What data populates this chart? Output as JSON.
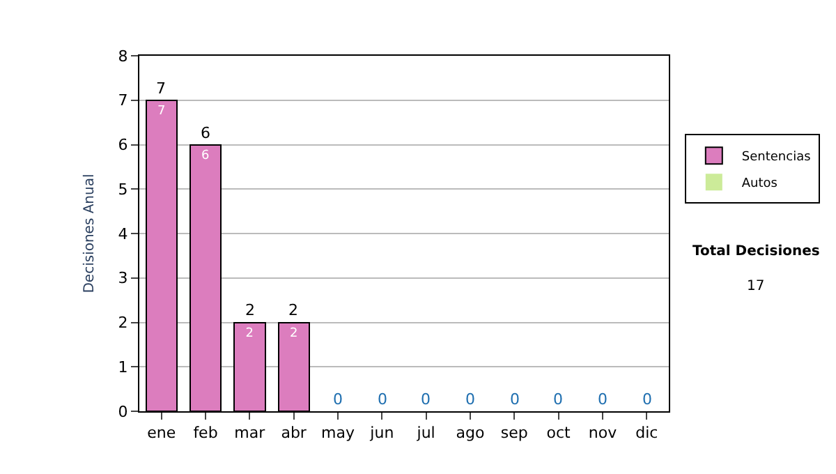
{
  "chart_data": {
    "type": "bar",
    "ylabel": "Decisiones Anual",
    "categories": [
      "ene",
      "feb",
      "mar",
      "abr",
      "may",
      "jun",
      "jul",
      "ago",
      "sep",
      "oct",
      "nov",
      "dic"
    ],
    "series": [
      {
        "name": "Sentencias",
        "color": "#dc7dbe",
        "values": [
          7,
          6,
          2,
          2,
          0,
          0,
          0,
          0,
          0,
          0,
          0,
          0
        ],
        "value_labels": [
          "7",
          "6",
          "2",
          "2",
          null,
          null,
          null,
          null,
          null,
          null,
          null,
          null
        ]
      },
      {
        "name": "Autos",
        "color": "#cceb99",
        "values": [
          0,
          0,
          0,
          0,
          0,
          0,
          0,
          0,
          0,
          0,
          0,
          0
        ]
      }
    ],
    "stacked": true,
    "totals": [
      "7",
      "6",
      "2",
      "2",
      "0",
      "0",
      "0",
      "0",
      "0",
      "0",
      "0",
      "0"
    ],
    "ylim": [
      0,
      8
    ],
    "yticks": [
      0,
      1,
      2,
      3,
      4,
      5,
      6,
      7,
      8
    ],
    "grid": "y",
    "legend": "right",
    "annotations": [
      "Total Decisiones",
      "17"
    ]
  }
}
